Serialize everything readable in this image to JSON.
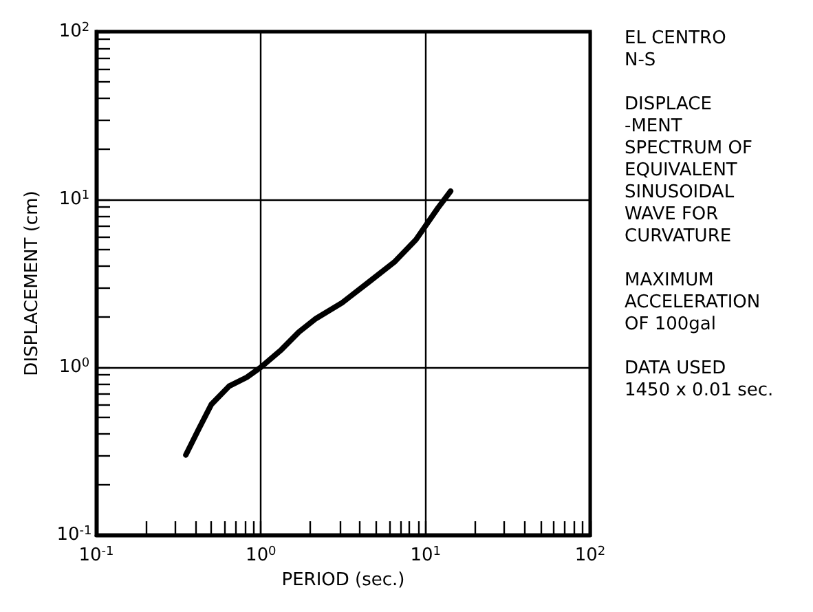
{
  "chart_data": {
    "type": "line",
    "xlabel": "PERIOD (sec.)",
    "ylabel": "DISPLACEMENT (cm)",
    "log": "xy",
    "grid": true,
    "marker": "none",
    "line_style": "solid",
    "xlim": [
      0.1,
      100
    ],
    "ylim": [
      0.1,
      100
    ],
    "xticks": [
      {
        "value": 0.1,
        "label": "10$^{-1}$"
      },
      {
        "value": 0.2,
        "label": null
      },
      {
        "value": 0.3,
        "label": null
      },
      {
        "value": 0.4,
        "label": null
      },
      {
        "value": 0.5,
        "label": null
      },
      {
        "value": 0.6,
        "label": null
      },
      {
        "value": 0.7,
        "label": null
      },
      {
        "value": 0.8,
        "label": null
      },
      {
        "value": 0.9,
        "label": null
      },
      {
        "value": 1,
        "label": "10$^{0}$"
      },
      {
        "value": 2,
        "label": null
      },
      {
        "value": 3,
        "label": null
      },
      {
        "value": 4,
        "label": null
      },
      {
        "value": 5,
        "label": null
      },
      {
        "value": 6,
        "label": null
      },
      {
        "value": 7,
        "label": null
      },
      {
        "value": 8,
        "label": null
      },
      {
        "value": 9,
        "label": null
      },
      {
        "value": 10,
        "label": "10$^{1}$"
      },
      {
        "value": 20,
        "label": null
      },
      {
        "value": 30,
        "label": null
      },
      {
        "value": 40,
        "label": null
      },
      {
        "value": 50,
        "label": null
      },
      {
        "value": 60,
        "label": null
      },
      {
        "value": 70,
        "label": null
      },
      {
        "value": 80,
        "label": null
      },
      {
        "value": 90,
        "label": null
      },
      {
        "value": 100,
        "label": "10$^{2}$"
      }
    ],
    "yticks": [
      {
        "value": 0.1,
        "label": "10$^{-1}$"
      },
      {
        "value": 0.2,
        "label": null
      },
      {
        "value": 0.3,
        "label": null
      },
      {
        "value": 0.4,
        "label": null
      },
      {
        "value": 0.5,
        "label": null
      },
      {
        "value": 0.6,
        "label": null
      },
      {
        "value": 0.7,
        "label": null
      },
      {
        "value": 0.8,
        "label": null
      },
      {
        "value": 0.9,
        "label": null
      },
      {
        "value": 1,
        "label": "10$^{0}$"
      },
      {
        "value": 2,
        "label": null
      },
      {
        "value": 3,
        "label": null
      },
      {
        "value": 4,
        "label": null
      },
      {
        "value": 5,
        "label": null
      },
      {
        "value": 6,
        "label": null
      },
      {
        "value": 7,
        "label": null
      },
      {
        "value": 8,
        "label": null
      },
      {
        "value": 9,
        "label": null
      },
      {
        "value": 10,
        "label": "10$^{1}$"
      },
      {
        "value": 20,
        "label": null
      },
      {
        "value": 30,
        "label": null
      },
      {
        "value": 40,
        "label": null
      },
      {
        "value": 50,
        "label": null
      },
      {
        "value": 60,
        "label": null
      },
      {
        "value": 70,
        "label": null
      },
      {
        "value": 80,
        "label": null
      },
      {
        "value": 90,
        "label": null
      },
      {
        "value": 100,
        "label": "10$^{2}$"
      }
    ],
    "x": [
      0.35,
      0.42,
      0.5,
      0.64,
      0.82,
      1.0,
      1.33,
      1.7,
      2.16,
      3.11,
      4.49,
      6.46,
      8.75,
      11.9,
      14.2
    ],
    "series": [
      {
        "color": "#000000",
        "values": [
          0.3,
          0.43,
          0.6,
          0.77,
          0.87,
          1.0,
          1.27,
          1.62,
          1.95,
          2.42,
          3.2,
          4.23,
          5.76,
          8.9,
          11.2
        ]
      }
    ],
    "annotations": [
      "EL CENTRO\nN-S",
      "DISPLACE\n-MENT\nSPECTRUM OF\nEQUIVALENT\nSINUSOIDAL\nWAVE FOR\nCURVATURE",
      "MAXIMUM\nACCELERATION\nOF 100gal",
      "DATA USED\n1450 x 0.01 sec."
    ]
  }
}
